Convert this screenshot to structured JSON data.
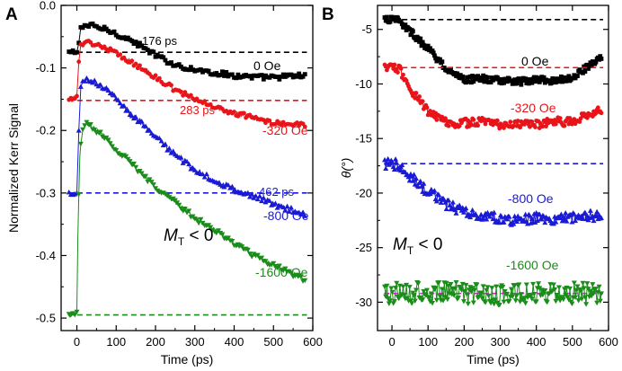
{
  "chart_data": [
    {
      "panel": "A",
      "type": "scatter",
      "xlabel": "Time (ps)",
      "ylabel": "Normalized Kerr Signal",
      "xlim": [
        -40,
        600
      ],
      "ylim": [
        -0.52,
        0.0
      ],
      "xticks": [
        0,
        100,
        200,
        300,
        400,
        500,
        600
      ],
      "xtick_labels": [
        "0",
        "100",
        "200",
        "300",
        "400",
        "500",
        "600"
      ],
      "yticks": [
        0.0,
        -0.1,
        -0.2,
        -0.3,
        -0.4,
        -0.5
      ],
      "ytick_labels": [
        "0.0",
        "-0.1",
        "-0.2",
        "-0.3",
        "-0.4",
        "-0.5"
      ],
      "grid": false,
      "annotation": {
        "main": "M",
        "sub": "T",
        "rest": " < 0"
      },
      "series": [
        {
          "name": "0 Oe",
          "color": "#000000",
          "marker": "square",
          "baseline": -0.075,
          "label": "0 Oe",
          "tau_label": "176 ps",
          "points": [
            [
              -20,
              -0.075
            ],
            [
              -10,
              -0.075
            ],
            [
              0,
              -0.075
            ],
            [
              5,
              -0.06
            ],
            [
              10,
              -0.035
            ],
            [
              20,
              -0.032
            ],
            [
              40,
              -0.033
            ],
            [
              60,
              -0.036
            ],
            [
              80,
              -0.04
            ],
            [
              100,
              -0.045
            ],
            [
              150,
              -0.06
            ],
            [
              200,
              -0.08
            ],
            [
              250,
              -0.095
            ],
            [
              300,
              -0.103
            ],
            [
              350,
              -0.108
            ],
            [
              400,
              -0.112
            ],
            [
              450,
              -0.115
            ],
            [
              500,
              -0.115
            ],
            [
              550,
              -0.113
            ],
            [
              580,
              -0.112
            ]
          ]
        },
        {
          "name": "-320 Oe",
          "color": "#e8141a",
          "marker": "circle",
          "baseline": -0.152,
          "label": "-320 Oe",
          "tau_label": "283 ps",
          "points": [
            [
              -20,
              -0.152
            ],
            [
              -10,
              -0.15
            ],
            [
              0,
              -0.145
            ],
            [
              5,
              -0.09
            ],
            [
              10,
              -0.062
            ],
            [
              20,
              -0.058
            ],
            [
              40,
              -0.06
            ],
            [
              60,
              -0.065
            ],
            [
              80,
              -0.07
            ],
            [
              100,
              -0.077
            ],
            [
              150,
              -0.095
            ],
            [
              200,
              -0.115
            ],
            [
              250,
              -0.135
            ],
            [
              300,
              -0.15
            ],
            [
              350,
              -0.162
            ],
            [
              400,
              -0.172
            ],
            [
              450,
              -0.18
            ],
            [
              500,
              -0.187
            ],
            [
              550,
              -0.19
            ],
            [
              580,
              -0.19
            ]
          ]
        },
        {
          "name": "-800 Oe",
          "color": "#1a1ad6",
          "marker": "triangle-up",
          "baseline": -0.3,
          "label": "-800 Oe",
          "tau_label": "462 ps",
          "points": [
            [
              -20,
              -0.3
            ],
            [
              -10,
              -0.3
            ],
            [
              0,
              -0.3
            ],
            [
              5,
              -0.2
            ],
            [
              10,
              -0.13
            ],
            [
              20,
              -0.118
            ],
            [
              40,
              -0.12
            ],
            [
              60,
              -0.128
            ],
            [
              80,
              -0.138
            ],
            [
              100,
              -0.15
            ],
            [
              150,
              -0.18
            ],
            [
              200,
              -0.21
            ],
            [
              250,
              -0.24
            ],
            [
              300,
              -0.262
            ],
            [
              350,
              -0.28
            ],
            [
              400,
              -0.295
            ],
            [
              450,
              -0.305
            ],
            [
              500,
              -0.318
            ],
            [
              550,
              -0.328
            ],
            [
              580,
              -0.335
            ]
          ]
        },
        {
          "name": "-1600 Oe",
          "color": "#1a8c1a",
          "marker": "triangle-down",
          "baseline": -0.495,
          "label": "-1600 Oe",
          "tau_label": "",
          "points": [
            [
              -20,
              -0.495
            ],
            [
              -10,
              -0.495
            ],
            [
              0,
              -0.49
            ],
            [
              3,
              -0.35
            ],
            [
              8,
              -0.23
            ],
            [
              15,
              -0.2
            ],
            [
              25,
              -0.19
            ],
            [
              40,
              -0.195
            ],
            [
              60,
              -0.205
            ],
            [
              80,
              -0.215
            ],
            [
              100,
              -0.23
            ],
            [
              150,
              -0.26
            ],
            [
              200,
              -0.29
            ],
            [
              250,
              -0.315
            ],
            [
              300,
              -0.34
            ],
            [
              350,
              -0.36
            ],
            [
              400,
              -0.38
            ],
            [
              450,
              -0.4
            ],
            [
              500,
              -0.415
            ],
            [
              550,
              -0.43
            ],
            [
              580,
              -0.44
            ]
          ]
        }
      ]
    },
    {
      "panel": "B",
      "type": "line",
      "xlabel": "Time (ps)",
      "ylabel": "θ(°)",
      "xlim": [
        -40,
        600
      ],
      "ylim": [
        -32.6,
        -2.8
      ],
      "xticks": [
        0,
        100,
        200,
        300,
        400,
        500,
        600
      ],
      "xtick_labels": [
        "0",
        "100",
        "200",
        "300",
        "400",
        "500",
        "600"
      ],
      "yticks": [
        -5,
        -10,
        -15,
        -20,
        -25,
        -30
      ],
      "ytick_labels": [
        "-5",
        "-10",
        "-15",
        "-20",
        "-25",
        "-30"
      ],
      "grid": false,
      "annotation": {
        "main": "M",
        "sub": "T",
        "rest": " < 0"
      },
      "series": [
        {
          "name": "0 Oe",
          "color": "#000000",
          "marker": "square",
          "baseline": -4.1,
          "label": "0 Oe",
          "noise": 0.3,
          "points": [
            [
              -20,
              -4.1
            ],
            [
              -10,
              -4.1
            ],
            [
              0,
              -4.1
            ],
            [
              20,
              -4.2
            ],
            [
              50,
              -5.2
            ],
            [
              100,
              -6.8
            ],
            [
              150,
              -8.6
            ],
            [
              200,
              -9.6
            ],
            [
              250,
              -9.5
            ],
            [
              300,
              -9.7
            ],
            [
              350,
              -9.8
            ],
            [
              400,
              -9.6
            ],
            [
              450,
              -9.7
            ],
            [
              500,
              -9.4
            ],
            [
              550,
              -8.2
            ],
            [
              580,
              -7.4
            ]
          ]
        },
        {
          "name": "-320 Oe",
          "color": "#e8141a",
          "marker": "circle",
          "baseline": -8.5,
          "label": "-320 Oe",
          "noise": 0.4,
          "points": [
            [
              -20,
              -8.5
            ],
            [
              -10,
              -8.5
            ],
            [
              0,
              -8.5
            ],
            [
              20,
              -8.6
            ],
            [
              50,
              -10.5
            ],
            [
              100,
              -12.5
            ],
            [
              150,
              -13.5
            ],
            [
              200,
              -13.6
            ],
            [
              250,
              -13.4
            ],
            [
              300,
              -13.8
            ],
            [
              350,
              -13.7
            ],
            [
              400,
              -13.7
            ],
            [
              450,
              -13.4
            ],
            [
              500,
              -13.5
            ],
            [
              550,
              -12.7
            ],
            [
              580,
              -12.4
            ]
          ]
        },
        {
          "name": "-800 Oe",
          "color": "#1a1ad6",
          "marker": "triangle-up",
          "baseline": -17.3,
          "label": "-800 Oe",
          "noise": 0.5,
          "points": [
            [
              -20,
              -17.3
            ],
            [
              -10,
              -17.3
            ],
            [
              0,
              -17.3
            ],
            [
              20,
              -17.4
            ],
            [
              50,
              -18.5
            ],
            [
              100,
              -19.8
            ],
            [
              150,
              -21.0
            ],
            [
              200,
              -21.8
            ],
            [
              250,
              -22.0
            ],
            [
              300,
              -22.3
            ],
            [
              350,
              -22.5
            ],
            [
              400,
              -22.3
            ],
            [
              450,
              -22.3
            ],
            [
              500,
              -22.3
            ],
            [
              550,
              -22.1
            ],
            [
              580,
              -22.1
            ]
          ]
        },
        {
          "name": "-1600 Oe",
          "color": "#1a8c1a",
          "marker": "triangle-down",
          "baseline": -29.2,
          "baseline_color": "#e020e0",
          "label": "-1600 Oe",
          "noise": 1.0,
          "points": [
            [
              -20,
              -29.3
            ],
            [
              0,
              -29.2
            ],
            [
              100,
              -29.1
            ],
            [
              200,
              -29.2
            ],
            [
              300,
              -29.3
            ],
            [
              400,
              -29.1
            ],
            [
              500,
              -29.2
            ],
            [
              580,
              -29.2
            ]
          ]
        }
      ]
    }
  ]
}
